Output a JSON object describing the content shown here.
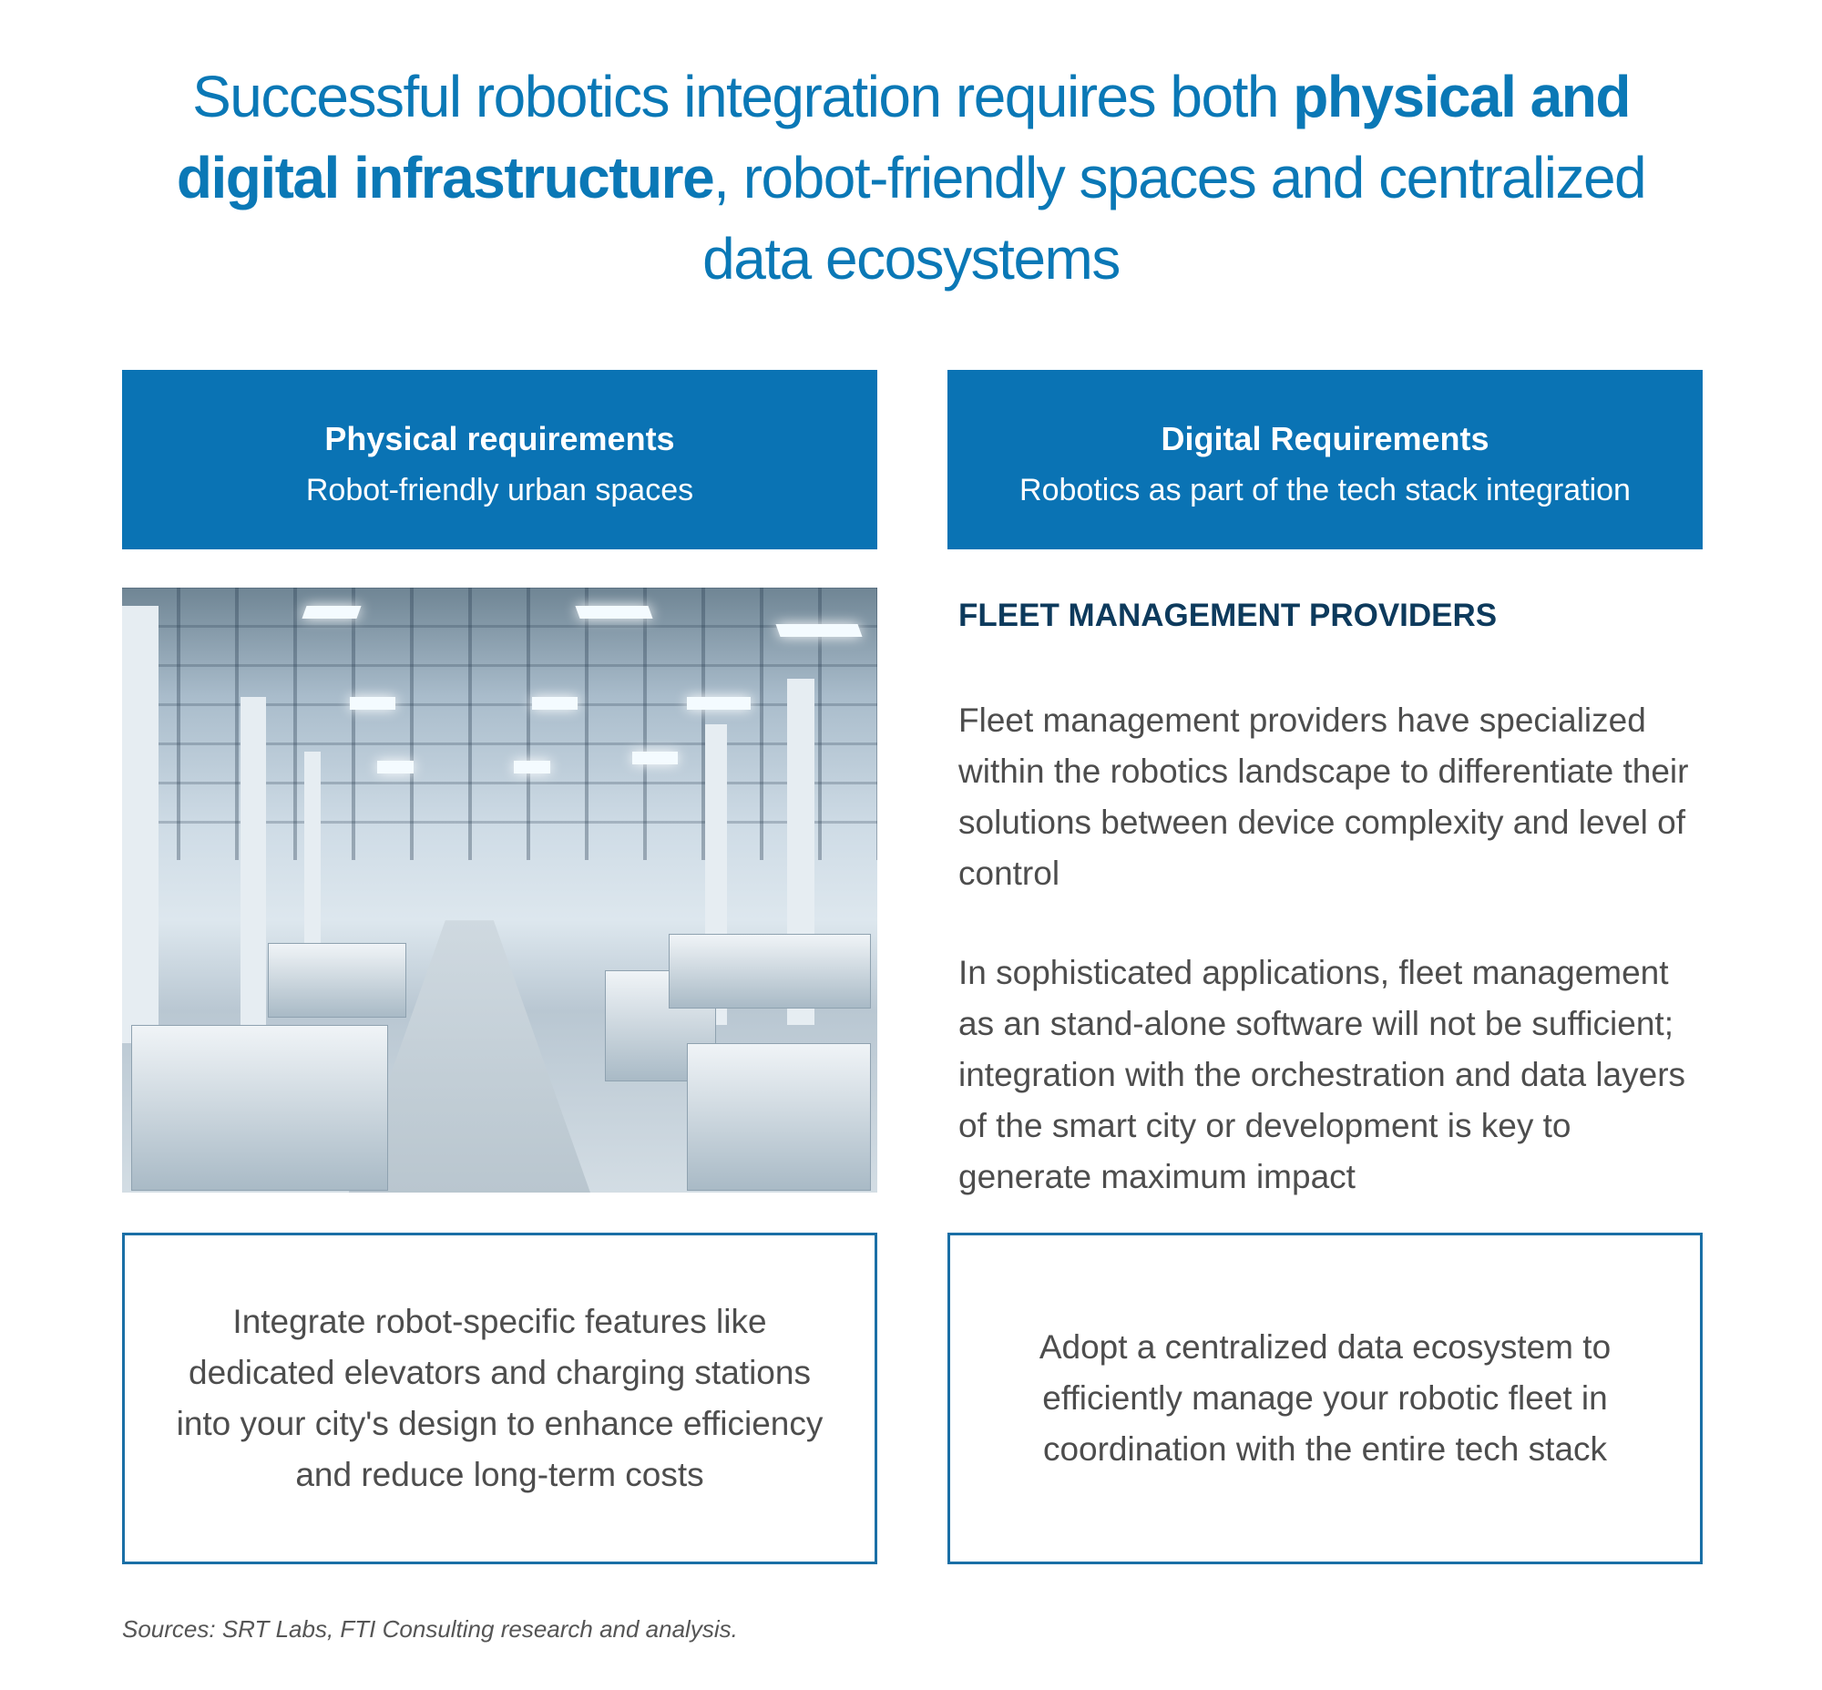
{
  "title": {
    "part1": "Successful robotics integration requires both ",
    "bold": "physical and digital infrastructure",
    "part2": ", robot-friendly spaces and centralized data ecosystems"
  },
  "physical": {
    "heading": "Physical requirements",
    "subheading": "Robot-friendly urban spaces",
    "box_text": "Integrate robot-specific features like dedicated elevators and charging stations into your city's design to enhance efficiency and reduce long-term costs"
  },
  "digital": {
    "heading": "Digital Requirements",
    "subheading": "Robotics as part of the tech stack integration",
    "section_title": "FLEET MANAGEMENT PROVIDERS",
    "paragraphs": [
      "Fleet management providers have specialized within the robotics landscape to differentiate their solutions between device complexity and level of control",
      "In sophisticated applications, fleet management as an stand-alone software will not be sufficient; integration with the orchestration and data layers of the smart city or development is key to generate maximum impact"
    ],
    "box_text": "Adopt a centralized data ecosystem to efficiently manage your robotic fleet in coordination with the entire tech stack"
  },
  "sources": "Sources: SRT Labs, FTI Consulting research and analysis.",
  "colors": {
    "brand_blue": "#0a73b4",
    "heading_navy": "#0d3a5c",
    "body_gray": "#4d4d4d"
  }
}
